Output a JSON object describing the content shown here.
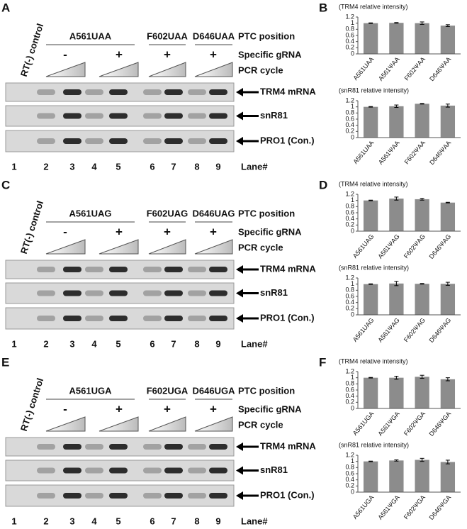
{
  "panels": [
    {
      "letter": "A",
      "groups": [
        "A561UAA",
        "F602UAA",
        "D646UAA"
      ],
      "ptc_label": "PTC position",
      "grna_signs": [
        "-",
        "+",
        "+",
        "+"
      ],
      "grna_label": "Specific gRNA",
      "pcr_label": "PCR cycle",
      "control_label": "RT(-) control",
      "bands": [
        "TRM4 mRNA",
        "snR81",
        "PRO1 (Con.)"
      ],
      "lanes": [
        1,
        2,
        3,
        4,
        5,
        6,
        7,
        8,
        9
      ],
      "lane_label": "Lane#"
    },
    {
      "letter": "C",
      "groups": [
        "A561UAG",
        "F602UAG",
        "D646UAG"
      ],
      "ptc_label": "PTC position",
      "grna_signs": [
        "-",
        "+",
        "+",
        "+"
      ],
      "grna_label": "Specific gRNA",
      "pcr_label": "PCR cycle",
      "control_label": "RT(-) control",
      "bands": [
        "TRM4 mRNA",
        "snR81",
        "PRO1 (Con.)"
      ],
      "lanes": [
        1,
        2,
        3,
        4,
        5,
        6,
        7,
        8,
        9
      ],
      "lane_label": "Lane#"
    },
    {
      "letter": "E",
      "groups": [
        "A561UGA",
        "F602UGA",
        "D646UGA"
      ],
      "ptc_label": "PTC position",
      "grna_signs": [
        "-",
        "+",
        "+",
        "+"
      ],
      "grna_label": "Specific gRNA",
      "pcr_label": "PCR cycle",
      "control_label": "RT(-) control",
      "bands": [
        "TRM4 mRNA",
        "snR81",
        "PRO1 (Con.)"
      ],
      "lanes": [
        1,
        2,
        3,
        4,
        5,
        6,
        7,
        8,
        9
      ],
      "lane_label": "Lane#"
    }
  ],
  "chart_letters": [
    "B",
    "D",
    "F"
  ],
  "chart_data": [
    {
      "type": "bar",
      "title": "(TRM4 relative intensity)",
      "categories": [
        "A561UAA",
        "A561ΨAA",
        "F602ΨAA",
        "D646ΨAA"
      ],
      "values": [
        1,
        1.01,
        1.0,
        0.92
      ],
      "errors": [
        0.01,
        0.01,
        0.04,
        0.03
      ],
      "color": "#8c8c8c",
      "ylim": [
        0,
        1.2
      ],
      "yticks": [
        0,
        0.2,
        0.4,
        0.6,
        0.8,
        1,
        1.2
      ]
    },
    {
      "type": "bar",
      "title": "(snR81 relative intensity)",
      "categories": [
        "A561UAA",
        "A561ΨAA",
        "F602ΨAA",
        "D646ΨAA"
      ],
      "values": [
        1,
        1.02,
        1.1,
        1.04
      ],
      "errors": [
        0.01,
        0.04,
        0.01,
        0.05
      ],
      "color": "#8c8c8c",
      "ylim": [
        0,
        1.2
      ],
      "yticks": [
        0,
        0.2,
        0.4,
        0.6,
        0.8,
        1,
        1.2
      ]
    },
    {
      "type": "bar",
      "title": "(TRM4 relative intensity)",
      "categories": [
        "A561UAG",
        "A561ΨAG",
        "F602ΨAG",
        "D646ΨAG"
      ],
      "values": [
        1,
        1.06,
        1.04,
        0.93
      ],
      "errors": [
        0.01,
        0.05,
        0.03,
        0.01
      ],
      "color": "#8c8c8c",
      "ylim": [
        0,
        1.2
      ],
      "yticks": [
        0,
        0.2,
        0.4,
        0.6,
        0.8,
        1,
        1.2
      ]
    },
    {
      "type": "bar",
      "title": "(snR81 relative intensity)",
      "categories": [
        "A561UAG",
        "A561ΨAG",
        "F602ΨAG",
        "D646ΨAG"
      ],
      "values": [
        1,
        1.02,
        1.01,
        1.01
      ],
      "errors": [
        0.01,
        0.07,
        0.01,
        0.05
      ],
      "color": "#8c8c8c",
      "ylim": [
        0,
        1.2
      ],
      "yticks": [
        0,
        0.2,
        0.4,
        0.6,
        0.8,
        1,
        1.2
      ]
    },
    {
      "type": "bar",
      "title": "(TRM4 relative intensity)",
      "categories": [
        "A561UGA",
        "A561ΨGA",
        "F602ΨGA",
        "D646ΨGA"
      ],
      "values": [
        1,
        1.0,
        1.03,
        0.95
      ],
      "errors": [
        0.01,
        0.05,
        0.05,
        0.05
      ],
      "color": "#8c8c8c",
      "ylim": [
        0,
        1.2
      ],
      "yticks": [
        0,
        0.2,
        0.4,
        0.6,
        0.8,
        1,
        1.2
      ]
    },
    {
      "type": "bar",
      "title": "(snR81 relative intensity)",
      "categories": [
        "A561UGA",
        "A561ΨGA",
        "F602ΨGA",
        "D646ΨGA"
      ],
      "values": [
        1,
        1.03,
        1.05,
        0.98
      ],
      "errors": [
        0.01,
        0.02,
        0.05,
        0.06
      ],
      "color": "#8c8c8c",
      "ylim": [
        0,
        1.2
      ],
      "yticks": [
        0,
        0.2,
        0.4,
        0.6,
        0.8,
        1,
        1.2
      ]
    }
  ]
}
